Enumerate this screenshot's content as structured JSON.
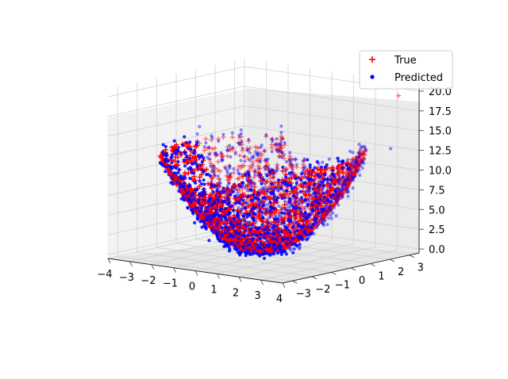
{
  "chart_data": {
    "type": "scatter",
    "projection": "3d",
    "title": "",
    "xlabel": "",
    "ylabel": "",
    "zlabel": "",
    "xlim": [
      -4,
      4
    ],
    "ylim": [
      -3.5,
      3.5
    ],
    "zlim": [
      -0.5,
      21
    ],
    "x_ticks": [
      "−4",
      "−3",
      "−2",
      "−1",
      "0",
      "1",
      "2",
      "3",
      "4"
    ],
    "y_ticks": [
      "−3",
      "−2",
      "−1",
      "0",
      "1",
      "2",
      "3"
    ],
    "z_ticks": [
      "0.0",
      "2.5",
      "5.0",
      "7.5",
      "10.0",
      "12.5",
      "15.0",
      "17.5",
      "20.0"
    ],
    "grid": true,
    "legend_position": "top-right",
    "series": [
      {
        "name": "True",
        "marker": "plus",
        "color": "#ff0000",
        "description": "z = x^2 + y^2 sampled over x in [-4,4], y in [-3,3]; outlier near (3.5, 3, 19.5)",
        "outliers": [
          {
            "x": 3.5,
            "y": 3.0,
            "z": 19.5
          }
        ]
      },
      {
        "name": "Predicted",
        "marker": "dot",
        "color": "#0000ff",
        "outliers": [
          {
            "x": 3.5,
            "y": 2.6,
            "z": 13.0
          }
        ]
      }
    ]
  }
}
